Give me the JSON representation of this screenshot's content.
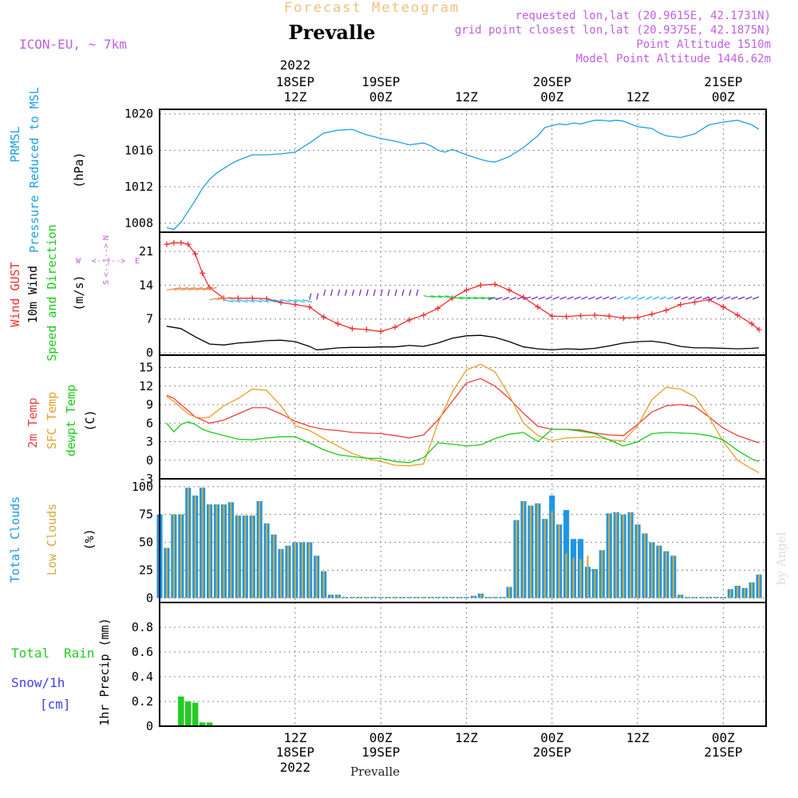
{
  "header": {
    "title": "Forecast Meteogram",
    "location": "Prevalle",
    "model": "ICON-EU, ~ 7km",
    "requested": "requested lon,lat (20.9615E, 42.1731N)",
    "gridpoint": "grid point closest lon,lat (20.9375E, 42.1875N)",
    "altitude": "Point Altitude 1510m",
    "model_altitude": "Model Point Altitude 1446.62m",
    "bottom_label": "Prevalle",
    "credit": "by Angel"
  },
  "time_axis": {
    "top": [
      {
        "l1": "2022",
        "l2": "18SEP",
        "l3": "12Z",
        "t": 12
      },
      {
        "l1": "",
        "l2": "19SEP",
        "l3": "00Z",
        "t": 24
      },
      {
        "l1": "",
        "l2": "",
        "l3": "12Z",
        "t": 36
      },
      {
        "l1": "",
        "l2": "20SEP",
        "l3": "00Z",
        "t": 48
      },
      {
        "l1": "",
        "l2": "",
        "l3": "12Z",
        "t": 60
      },
      {
        "l1": "",
        "l2": "21SEP",
        "l3": "00Z",
        "t": 72
      }
    ],
    "bottom": [
      {
        "l1": "12Z",
        "l2": "18SEP",
        "l3": "2022",
        "t": 12
      },
      {
        "l1": "00Z",
        "l2": "19SEP",
        "l3": "",
        "t": 24
      },
      {
        "l1": "12Z",
        "l2": "",
        "l3": "",
        "t": 36
      },
      {
        "l1": "00Z",
        "l2": "20SEP",
        "l3": "",
        "t": 48
      },
      {
        "l1": "12Z",
        "l2": "",
        "l3": "",
        "t": 60
      },
      {
        "l1": "00Z",
        "l2": "21SEP",
        "l3": "",
        "t": 72
      }
    ]
  },
  "panels": {
    "pressure": {
      "label1": "PRMSL",
      "label2": "Pressure Reduced to MSL",
      "unit": "(hPa)",
      "ticks": [
        "1008",
        "1012",
        "1016",
        "1020"
      ]
    },
    "wind": {
      "label1": "Wind GUST",
      "label2": "10m Wind",
      "label3": "Speed and Direction",
      "unit": "(m/s)",
      "ticks": [
        "0",
        "7",
        "14",
        "21"
      ],
      "compass": {
        "n": "N",
        "s": "S",
        "w": "W",
        "e": "E"
      }
    },
    "temp": {
      "label1": "2m Temp",
      "label2": "SFC Temp",
      "label3": "dewpt Temp",
      "unit": "(C)",
      "ticks": [
        "-3",
        "0",
        "3",
        "6",
        "9",
        "12",
        "15"
      ]
    },
    "clouds": {
      "label1": "Total Clouds",
      "label2": "Low Clouds",
      "unit": "(%)",
      "ticks": [
        "0",
        "25",
        "50",
        "75",
        "100"
      ]
    },
    "precip": {
      "label1": "Total",
      "label2": "Rain",
      "label3": "Snow/1h",
      "label4": "[cm]",
      "unit": "1hr Precip (mm)",
      "ticks": [
        "0",
        "0.2",
        "0.4",
        "0.6",
        "0.8"
      ]
    }
  },
  "colors": {
    "pressure": "#1ea0e6",
    "gust": "#f03030",
    "wind": "#000000",
    "temp2m": "#f03c3c",
    "sfc": "#e6a028",
    "dewpt": "#18cc18",
    "total_clouds": "#1e96e6",
    "low_clouds": "#d2aa3c",
    "precip": "#22cc22",
    "header": "#c060e0",
    "title": "#f0c080",
    "snow": "#4040f0"
  },
  "chart_data": {
    "type": "line",
    "x_unit": "hours from 2022-09-18 00Z",
    "x_range": [
      -7,
      78
    ],
    "pressure": {
      "ylim": [
        1007,
        1020.5
      ],
      "x": [
        -6,
        -5,
        -4,
        -3,
        -2,
        -1,
        0,
        1,
        2,
        3,
        4,
        5,
        6,
        7,
        8,
        10,
        12,
        14,
        16,
        18,
        20,
        22,
        24,
        26,
        28,
        30,
        31,
        32,
        33,
        34,
        36,
        38,
        39,
        40,
        42,
        44,
        46,
        47,
        48,
        49,
        50,
        51,
        52,
        53,
        54,
        55,
        56,
        57,
        58,
        60,
        62,
        63,
        64,
        66,
        68,
        70,
        72,
        74,
        76,
        77
      ],
      "y": [
        1007.5,
        1007.3,
        1008.1,
        1009.3,
        1010.5,
        1011.8,
        1012.8,
        1013.5,
        1014.0,
        1014.5,
        1014.9,
        1015.2,
        1015.5,
        1015.5,
        1015.5,
        1015.6,
        1015.8,
        1016.8,
        1017.9,
        1018.2,
        1018.3,
        1017.7,
        1017.3,
        1017.0,
        1016.6,
        1016.8,
        1016.5,
        1016.0,
        1015.8,
        1016.1,
        1015.5,
        1015.0,
        1014.8,
        1014.7,
        1015.3,
        1016.3,
        1017.6,
        1018.5,
        1018.7,
        1018.9,
        1018.8,
        1019.0,
        1018.9,
        1019.1,
        1019.3,
        1019.3,
        1019.2,
        1019.3,
        1019.2,
        1018.6,
        1018.4,
        1017.9,
        1017.6,
        1017.4,
        1017.8,
        1018.8,
        1019.1,
        1019.3,
        1018.8,
        1018.3
      ]
    },
    "wind_gust": {
      "ylim": [
        0,
        24
      ],
      "x": [
        -6,
        -5,
        -4,
        -3,
        -2,
        -1,
        0,
        2,
        4,
        6,
        8,
        10,
        12,
        14,
        16,
        18,
        20,
        22,
        24,
        26,
        28,
        30,
        32,
        34,
        36,
        38,
        40,
        42,
        44,
        46,
        48,
        50,
        52,
        54,
        56,
        58,
        60,
        62,
        64,
        66,
        68,
        70,
        72,
        74,
        76,
        77
      ],
      "y": [
        22.5,
        22.8,
        22.8,
        22.5,
        20.5,
        16.5,
        13.5,
        11.3,
        11.3,
        11.3,
        11.2,
        10.4,
        10.0,
        9.5,
        7.4,
        6.0,
        5.0,
        4.8,
        4.4,
        5.3,
        6.8,
        7.8,
        9.2,
        11.3,
        13.0,
        14.0,
        14.2,
        13.0,
        11.5,
        9.5,
        7.6,
        7.5,
        7.7,
        7.8,
        7.6,
        7.2,
        7.3,
        8.0,
        8.8,
        10.0,
        10.5,
        11.0,
        9.5,
        7.8,
        6.0,
        4.8
      ]
    },
    "wind_speed": {
      "ylim": [
        0,
        24
      ],
      "x": [
        -6,
        -4,
        -2,
        0,
        2,
        4,
        6,
        8,
        10,
        12,
        14,
        15,
        16,
        18,
        20,
        22,
        24,
        26,
        28,
        30,
        32,
        34,
        36,
        38,
        40,
        42,
        44,
        46,
        48,
        50,
        52,
        54,
        56,
        58,
        60,
        62,
        64,
        66,
        68,
        70,
        72,
        74,
        76,
        77
      ],
      "y": [
        5.5,
        5.0,
        3.3,
        1.8,
        1.6,
        2.0,
        2.2,
        2.5,
        2.6,
        2.3,
        1.3,
        0.6,
        0.7,
        1.0,
        1.1,
        1.1,
        1.2,
        1.2,
        1.5,
        1.3,
        2.0,
        3.0,
        3.5,
        3.6,
        3.2,
        2.3,
        1.2,
        0.8,
        0.6,
        0.8,
        0.7,
        0.9,
        1.4,
        2.0,
        2.3,
        2.4,
        2.0,
        1.3,
        1.0,
        1.0,
        0.9,
        0.8,
        0.9,
        1.0
      ]
    },
    "temp_2m": {
      "ylim": [
        -3,
        16
      ],
      "x": [
        -6,
        -5,
        -4,
        -3,
        -2,
        -1,
        0,
        2,
        4,
        6,
        8,
        10,
        12,
        14,
        16,
        18,
        20,
        22,
        24,
        26,
        28,
        30,
        32,
        34,
        36,
        38,
        40,
        42,
        44,
        46,
        48,
        50,
        52,
        54,
        56,
        58,
        60,
        62,
        64,
        66,
        68,
        70,
        72,
        74,
        76,
        77
      ],
      "y": [
        10.5,
        10.0,
        9.0,
        8.0,
        7.0,
        6.5,
        6.0,
        6.5,
        7.5,
        8.5,
        8.5,
        7.5,
        6.3,
        5.5,
        5.0,
        4.8,
        4.5,
        4.4,
        4.3,
        4.0,
        3.6,
        4.1,
        6.5,
        9.5,
        12.5,
        13.2,
        12.0,
        10.0,
        7.6,
        5.5,
        5.0,
        5.0,
        4.9,
        4.4,
        4.1,
        4.0,
        5.8,
        7.8,
        8.8,
        9.0,
        8.7,
        7.0,
        5.2,
        4.0,
        3.2,
        2.8
      ]
    },
    "temp_sfc": {
      "ylim": [
        -3,
        16
      ],
      "x": [
        -6,
        -5,
        -4,
        -3,
        -2,
        -1,
        0,
        2,
        4,
        6,
        8,
        10,
        12,
        14,
        16,
        18,
        20,
        22,
        24,
        26,
        28,
        30,
        32,
        34,
        36,
        38,
        40,
        42,
        44,
        46,
        48,
        50,
        52,
        54,
        56,
        58,
        60,
        62,
        64,
        66,
        68,
        70,
        72,
        74,
        76,
        77
      ],
      "y": [
        10.3,
        9.5,
        8.5,
        7.5,
        7.0,
        6.8,
        7.0,
        8.8,
        10.0,
        11.5,
        11.3,
        8.8,
        5.6,
        4.8,
        3.5,
        2.3,
        1.1,
        0.3,
        -0.2,
        -0.8,
        -0.9,
        -0.6,
        6.0,
        11.0,
        14.6,
        15.5,
        14.3,
        10.5,
        6.0,
        4.0,
        3.2,
        3.6,
        3.7,
        3.8,
        3.3,
        3.1,
        5.6,
        9.8,
        11.8,
        11.5,
        10.3,
        7.0,
        3.0,
        0.0,
        -1.4,
        -2.0
      ]
    },
    "temp_dewpt": {
      "ylim": [
        -3,
        16
      ],
      "x": [
        -6,
        -5,
        -4,
        -3,
        -2,
        -1,
        0,
        2,
        4,
        6,
        8,
        10,
        12,
        14,
        16,
        18,
        20,
        22,
        24,
        26,
        28,
        30,
        32,
        34,
        36,
        38,
        40,
        42,
        44,
        46,
        48,
        50,
        52,
        54,
        56,
        58,
        60,
        62,
        64,
        66,
        68,
        70,
        72,
        74,
        76,
        77
      ],
      "y": [
        6.0,
        4.6,
        5.8,
        6.2,
        5.8,
        5.0,
        4.6,
        4.0,
        3.4,
        3.3,
        3.6,
        3.8,
        3.8,
        2.8,
        1.7,
        0.9,
        0.6,
        0.3,
        0.3,
        -0.2,
        -0.4,
        0.4,
        2.8,
        2.6,
        2.3,
        2.5,
        3.5,
        4.2,
        4.5,
        3.0,
        5.0,
        5.0,
        4.7,
        4.3,
        3.3,
        2.3,
        3.0,
        4.3,
        4.5,
        4.4,
        4.3,
        4.0,
        3.3,
        1.6,
        0.2,
        -0.2
      ]
    },
    "clouds": {
      "ylim": [
        0,
        100
      ],
      "x_start": -7,
      "x_step": 1,
      "total": [
        75,
        45,
        75,
        75,
        99,
        92,
        99,
        84,
        84,
        84,
        86,
        74,
        74,
        74,
        87,
        67,
        57,
        44,
        47,
        50,
        50,
        50,
        38,
        24,
        3,
        3,
        1,
        1,
        1,
        1,
        1,
        1,
        1,
        1,
        1,
        1,
        1,
        1,
        1,
        1,
        1,
        1,
        1,
        1,
        2,
        4,
        1,
        1,
        1,
        10,
        70,
        87,
        83,
        85,
        71,
        92,
        66,
        79,
        53,
        53,
        28,
        26,
        43,
        76,
        77,
        75,
        77,
        66,
        58,
        50,
        47,
        42,
        38,
        3,
        1,
        1,
        1,
        1,
        1,
        1,
        8,
        11,
        9,
        14,
        21
      ],
      "low": [
        75,
        45,
        75,
        75,
        99,
        92,
        99,
        84,
        84,
        84,
        86,
        74,
        74,
        74,
        87,
        67,
        57,
        44,
        47,
        50,
        50,
        50,
        38,
        24,
        3,
        3,
        1,
        1,
        1,
        1,
        1,
        1,
        1,
        1,
        1,
        1,
        1,
        1,
        1,
        1,
        1,
        1,
        1,
        1,
        2,
        4,
        1,
        1,
        1,
        10,
        70,
        87,
        83,
        85,
        71,
        78,
        66,
        40,
        36,
        35,
        38,
        25,
        43,
        76,
        77,
        75,
        77,
        66,
        58,
        50,
        47,
        42,
        38,
        3,
        1,
        1,
        1,
        1,
        1,
        1,
        8,
        11,
        9,
        14,
        21
      ]
    },
    "precip": {
      "ylim": [
        0,
        1.0
      ],
      "x_start": -4,
      "x_step": 1,
      "values": [
        0.24,
        0.2,
        0.19,
        0.03,
        0.03
      ]
    }
  }
}
